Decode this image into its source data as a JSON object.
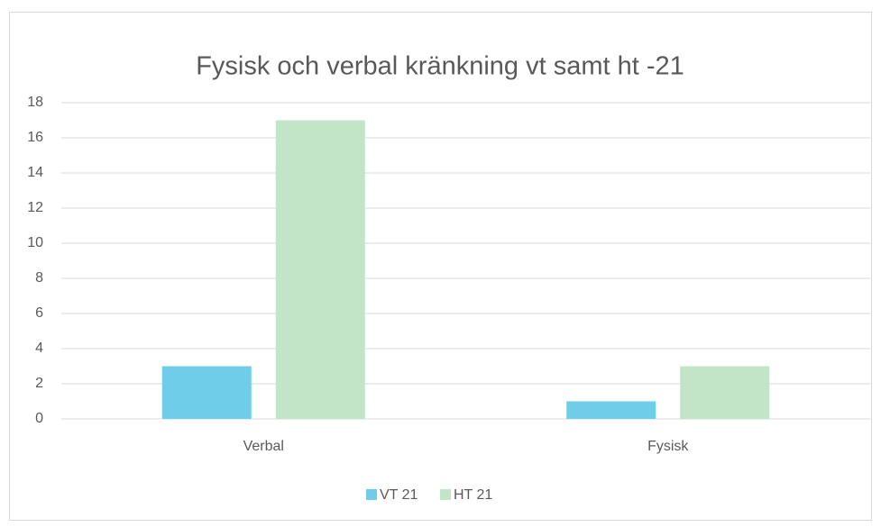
{
  "chart_data": {
    "type": "bar",
    "title": "Fysisk och verbal kränkning vt samt ht -21",
    "categories": [
      "Verbal",
      "Fysisk"
    ],
    "series": [
      {
        "name": "VT 21",
        "color": "#6fcde9",
        "values": [
          3,
          1
        ]
      },
      {
        "name": "HT 21",
        "color": "#c2e5c8",
        "values": [
          17,
          3
        ]
      }
    ],
    "ylim": [
      0,
      18
    ],
    "yticks": [
      0,
      2,
      4,
      6,
      8,
      10,
      12,
      14,
      16,
      18
    ],
    "grid": true,
    "legend": "bottom"
  }
}
